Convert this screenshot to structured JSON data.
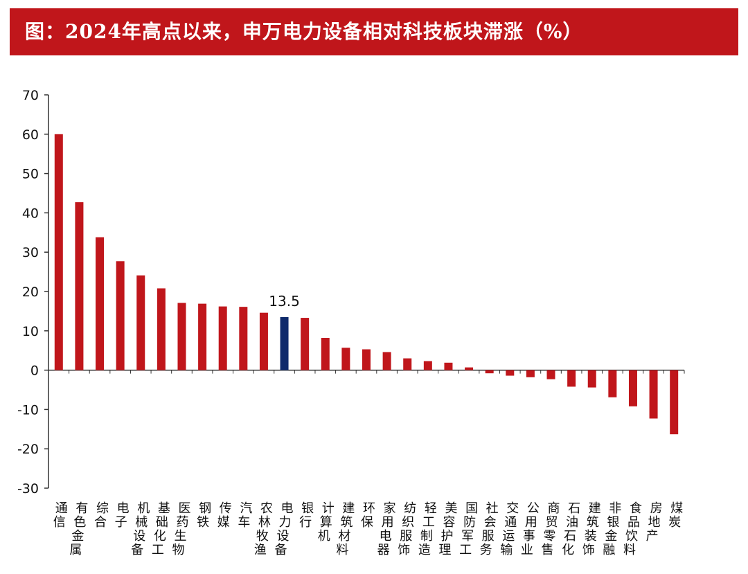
{
  "title": "图：2024年高点以来，申万电力设备相对科技板块滞涨（%）",
  "colors": {
    "bar": "#c0161b",
    "highlight": "#0f2a6b",
    "title_bg": "#c0161b"
  },
  "chart_data": {
    "type": "bar",
    "title": "图：2024年高点以来，申万电力设备相对科技板块滞涨（%）",
    "xlabel": "",
    "ylabel": "",
    "ylim": [
      -30,
      70
    ],
    "yticks": [
      70,
      60,
      50,
      40,
      30,
      20,
      10,
      0,
      -10,
      -20,
      -30
    ],
    "grid": false,
    "legend": "none",
    "categories": [
      "通信",
      "有色金属",
      "综合",
      "电子",
      "机械设备",
      "基础化工",
      "医药生物",
      "钢铁",
      "传媒",
      "汽车",
      "农林牧渔",
      "电力设备",
      "银行",
      "计算机",
      "建筑材料",
      "环保",
      "家用电器",
      "纺织服饰",
      "轻工制造",
      "美容护理",
      "国防军工",
      "社会服务",
      "交通运输",
      "公用事业",
      "商贸零售",
      "石油石化",
      "建筑装饰",
      "非银金融",
      "食品饮料",
      "房地产",
      "煤炭"
    ],
    "values": [
      60.0,
      42.7,
      33.8,
      27.7,
      24.1,
      20.8,
      17.1,
      16.9,
      16.2,
      16.1,
      14.6,
      13.5,
      13.3,
      8.2,
      5.7,
      5.3,
      4.6,
      3.0,
      2.3,
      1.9,
      0.7,
      -0.8,
      -1.4,
      -1.8,
      -2.3,
      -4.2,
      -4.4,
      -6.9,
      -9.2,
      -12.3,
      -16.3
    ],
    "highlight": {
      "category": "电力设备",
      "label": "13.5"
    }
  }
}
